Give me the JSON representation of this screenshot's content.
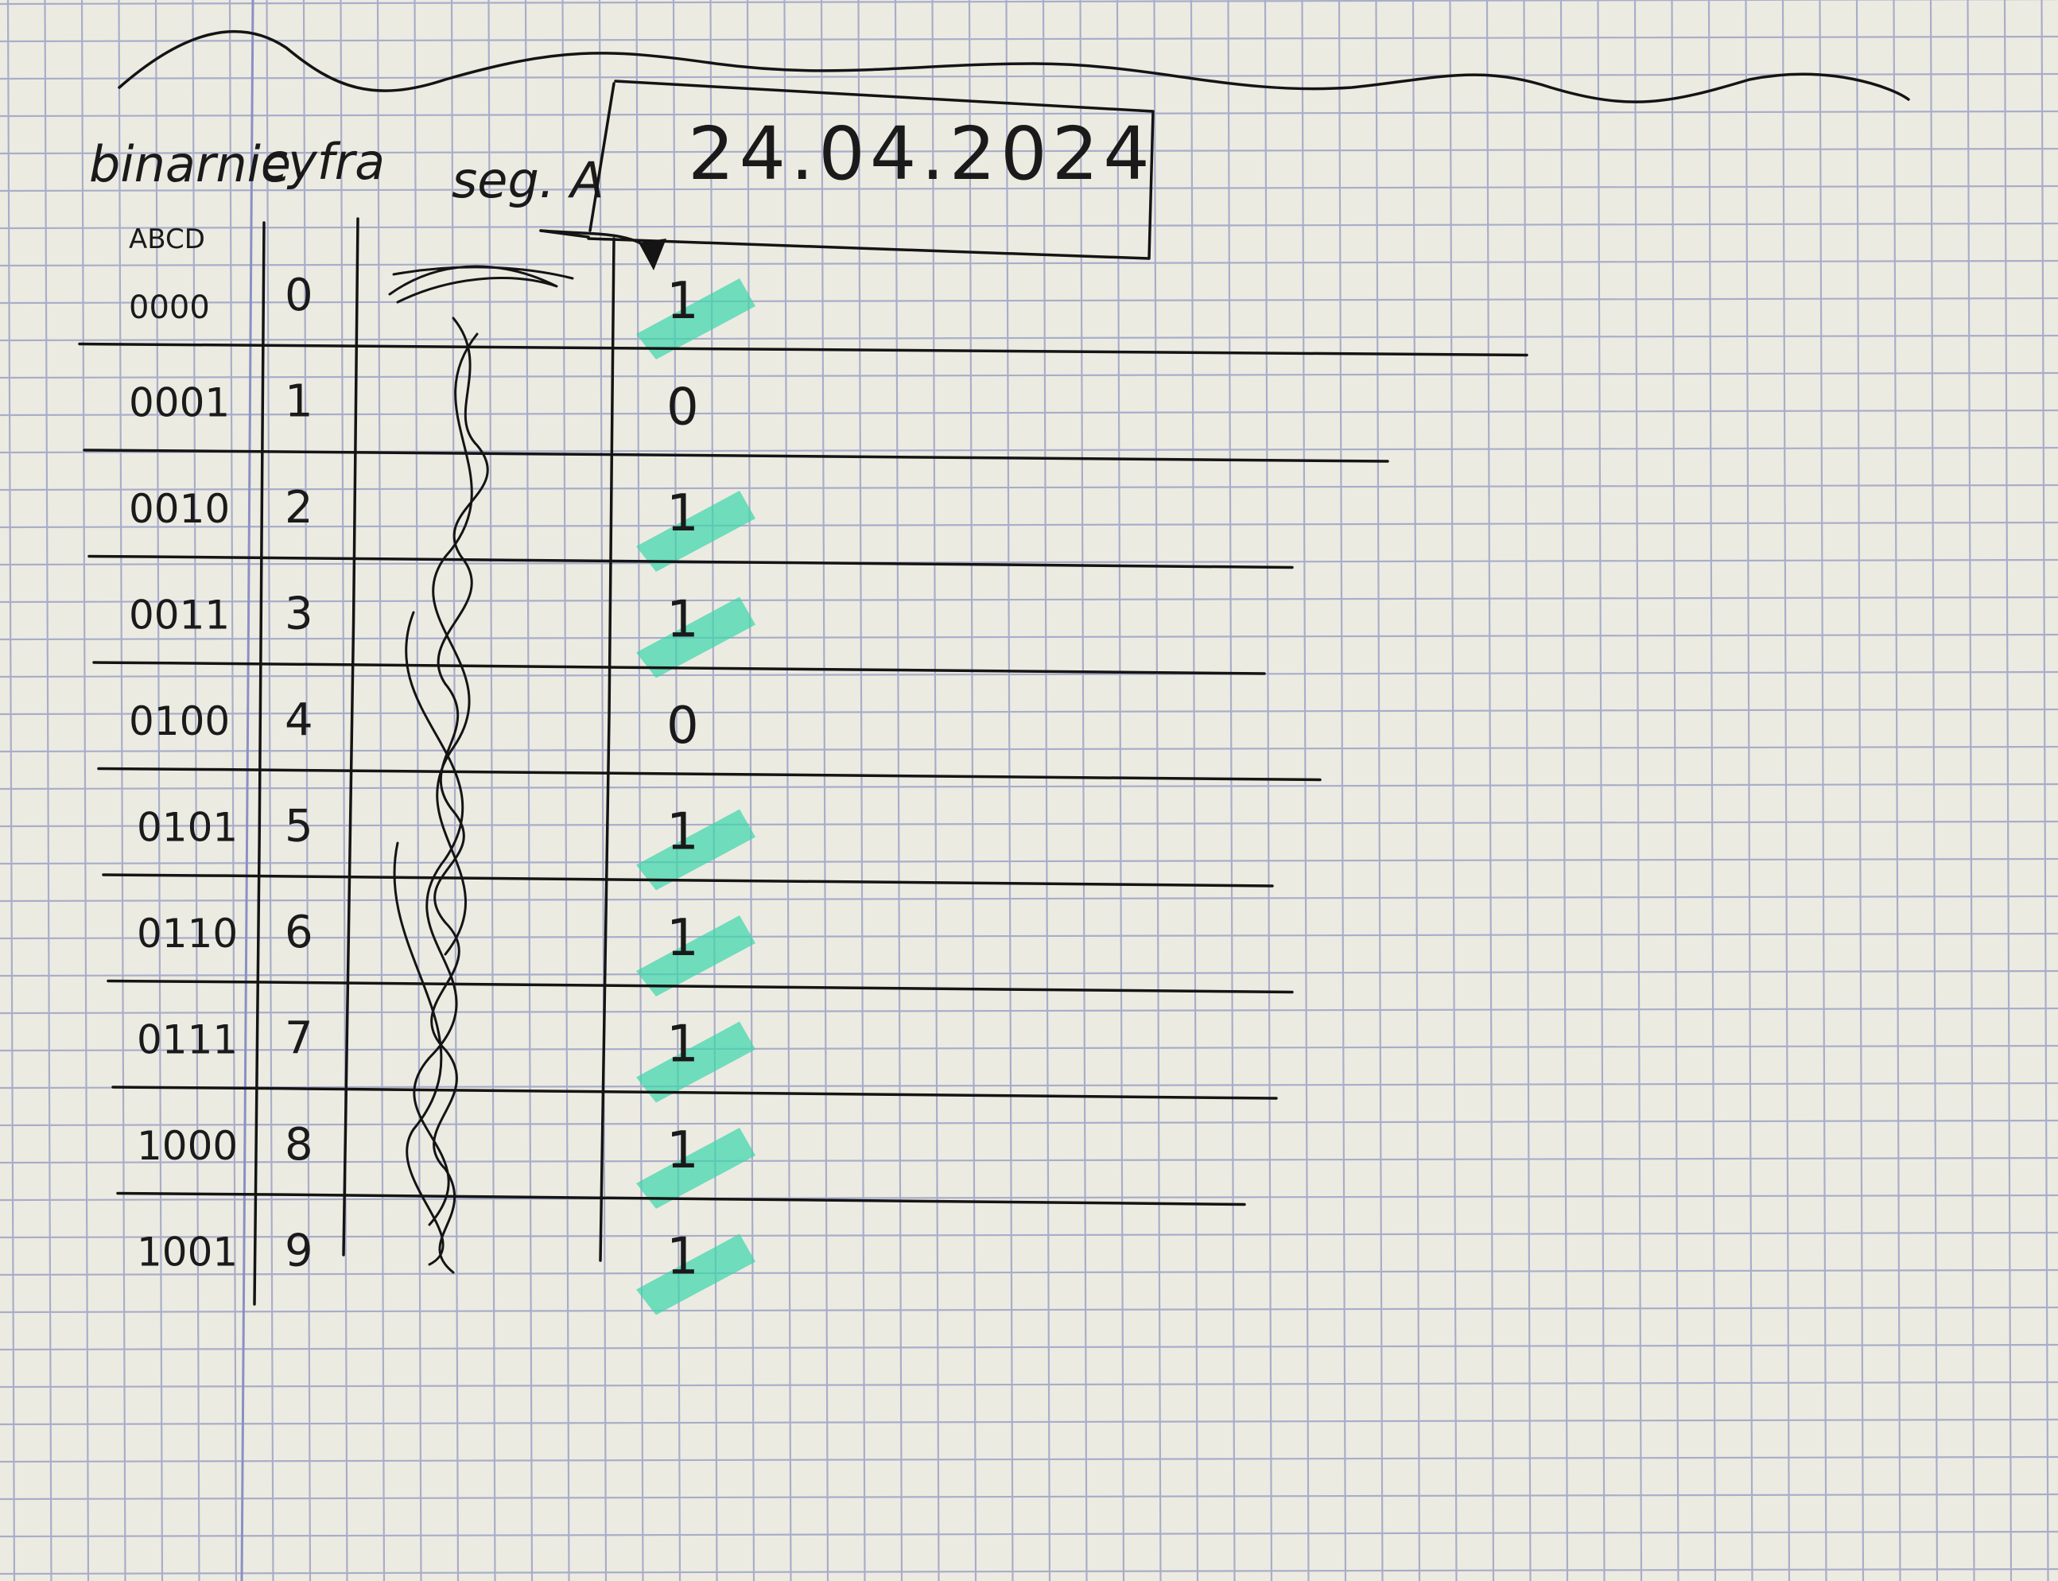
{
  "header": {
    "col_binary": "binarnie",
    "col_digit": "cyfra",
    "col_segment": "seg. A",
    "date": "24.04.2024",
    "bits_label": "ABCD"
  },
  "rows": [
    {
      "binary": "0000",
      "digit": "0",
      "seg_a": "1",
      "highlighted": true
    },
    {
      "binary": "0001",
      "digit": "1",
      "seg_a": "0",
      "highlighted": false
    },
    {
      "binary": "0010",
      "digit": "2",
      "seg_a": "1",
      "highlighted": true
    },
    {
      "binary": "0011",
      "digit": "3",
      "seg_a": "1",
      "highlighted": true
    },
    {
      "binary": "0100",
      "digit": "4",
      "seg_a": "0",
      "highlighted": false
    },
    {
      "binary": "0101",
      "digit": "5",
      "seg_a": "1",
      "highlighted": true
    },
    {
      "binary": "0110",
      "digit": "6",
      "seg_a": "1",
      "highlighted": true
    },
    {
      "binary": "0111",
      "digit": "7",
      "seg_a": "1",
      "highlighted": true
    },
    {
      "binary": "1000",
      "digit": "8",
      "seg_a": "1",
      "highlighted": true
    },
    {
      "binary": "1001",
      "digit": "9",
      "seg_a": "1",
      "highlighted": true
    }
  ],
  "colors": {
    "paper": "#ecebe2",
    "grid": "#a9adc9",
    "ink": "#141414",
    "highlighter": "#3fd6ac",
    "margin_line": "#8a90c4"
  }
}
